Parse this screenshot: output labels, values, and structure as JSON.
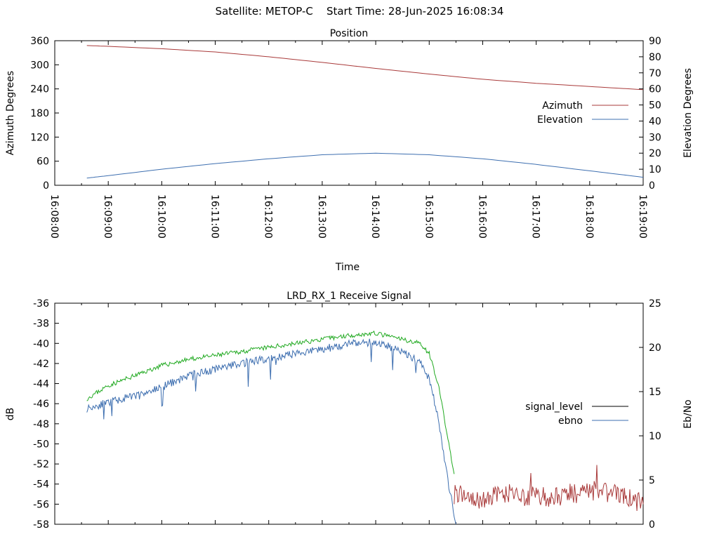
{
  "header": {
    "satellite_label": "Satellite: METOP-C",
    "start_time_label": "Start Time: 28-Jun-2025 16:08:34"
  },
  "chart_data": [
    {
      "type": "line",
      "title": "Position",
      "xlabel": "Time",
      "ylabel": "Azimuth Degrees",
      "y2label": "Elevation Degrees",
      "xlim": [
        "16:08:00",
        "16:19:00"
      ],
      "xticks": [
        "16:08:00",
        "16:09:00",
        "16:10:00",
        "16:11:00",
        "16:12:00",
        "16:13:00",
        "16:14:00",
        "16:15:00",
        "16:16:00",
        "16:17:00",
        "16:18:00",
        "16:19:00"
      ],
      "ylim": [
        0,
        360
      ],
      "yticks": [
        0,
        60,
        120,
        180,
        240,
        300,
        360
      ],
      "y2lim": [
        0,
        90
      ],
      "y2ticks": [
        0,
        10,
        20,
        30,
        40,
        50,
        60,
        70,
        80,
        90
      ],
      "legend_position": "right",
      "series": [
        {
          "name": "Azimuth",
          "color": "#a93a3a",
          "axis": "y",
          "x": [
            "16:08:36",
            "16:09:00",
            "16:10:00",
            "16:11:00",
            "16:12:00",
            "16:13:00",
            "16:14:00",
            "16:15:00",
            "16:16:00",
            "16:17:00",
            "16:18:00",
            "16:19:00"
          ],
          "values": [
            348,
            346,
            340,
            332,
            320,
            306,
            291,
            277,
            264,
            254,
            246,
            238
          ]
        },
        {
          "name": "Elevation",
          "color": "#3e6fb0",
          "axis": "y2",
          "x": [
            "16:08:36",
            "16:09:00",
            "16:10:00",
            "16:11:00",
            "16:12:00",
            "16:13:00",
            "16:14:00",
            "16:15:00",
            "16:16:00",
            "16:17:00",
            "16:18:00",
            "16:19:00"
          ],
          "values": [
            4.5,
            6,
            10,
            13.5,
            16.5,
            19,
            20,
            19,
            16.5,
            13,
            9,
            5
          ]
        }
      ]
    },
    {
      "type": "line",
      "title": "LRD_RX_1 Receive Signal",
      "xlabel": "",
      "ylabel": "dB",
      "y2label": "Eb/No",
      "xlim": [
        "16:08:00",
        "16:19:00"
      ],
      "ylim": [
        -58,
        -36
      ],
      "yticks": [
        -58,
        -56,
        -54,
        -52,
        -50,
        -48,
        -46,
        -44,
        -42,
        -40,
        -38,
        -36
      ],
      "y2lim": [
        0,
        25
      ],
      "y2ticks": [
        0,
        5,
        10,
        15,
        20,
        25
      ],
      "legend_position": "right",
      "legend": [
        {
          "name": "signal_level",
          "color": "#000000"
        },
        {
          "name": "ebno",
          "color": "#3e6fb0"
        }
      ],
      "series": [
        {
          "name": "signal_level (locked)",
          "color": "#22aa22",
          "axis": "y",
          "x": [
            "16:08:36",
            "16:09:00",
            "16:09:30",
            "16:10:00",
            "16:10:30",
            "16:11:00",
            "16:11:30",
            "16:12:00",
            "16:12:30",
            "16:13:00",
            "16:13:30",
            "16:14:00",
            "16:14:30",
            "16:14:50",
            "16:15:00",
            "16:15:10",
            "16:15:20",
            "16:15:28"
          ],
          "values": [
            -45.5,
            -44.2,
            -43.2,
            -42.2,
            -41.6,
            -41.2,
            -40.8,
            -40.4,
            -40.0,
            -39.6,
            -39.2,
            -39.0,
            -39.6,
            -40.0,
            -41.0,
            -44.0,
            -49.0,
            -53.0
          ]
        },
        {
          "name": "signal_level (unlocked)",
          "color": "#a93a3a",
          "axis": "y",
          "x": [
            "16:15:28",
            "16:16:00",
            "16:16:30",
            "16:17:00",
            "16:17:30",
            "16:18:00",
            "16:18:30",
            "16:19:00"
          ],
          "values": [
            -55.0,
            -55.5,
            -55.0,
            -55.3,
            -55.2,
            -54.6,
            -55.0,
            -56.0
          ]
        },
        {
          "name": "ebno",
          "color": "#3e6fb0",
          "axis": "y2",
          "x": [
            "16:08:36",
            "16:09:00",
            "16:09:30",
            "16:10:00",
            "16:10:30",
            "16:11:00",
            "16:11:30",
            "16:12:00",
            "16:12:30",
            "16:13:00",
            "16:13:30",
            "16:14:00",
            "16:14:30",
            "16:14:50",
            "16:15:00",
            "16:15:10",
            "16:15:20",
            "16:15:30"
          ],
          "values": [
            13.1,
            13.8,
            14.5,
            15.5,
            16.8,
            17.5,
            18.3,
            18.7,
            19.3,
            19.8,
            20.4,
            20.6,
            19.6,
            18.3,
            16.5,
            12.0,
            5.5,
            0
          ]
        }
      ]
    }
  ]
}
